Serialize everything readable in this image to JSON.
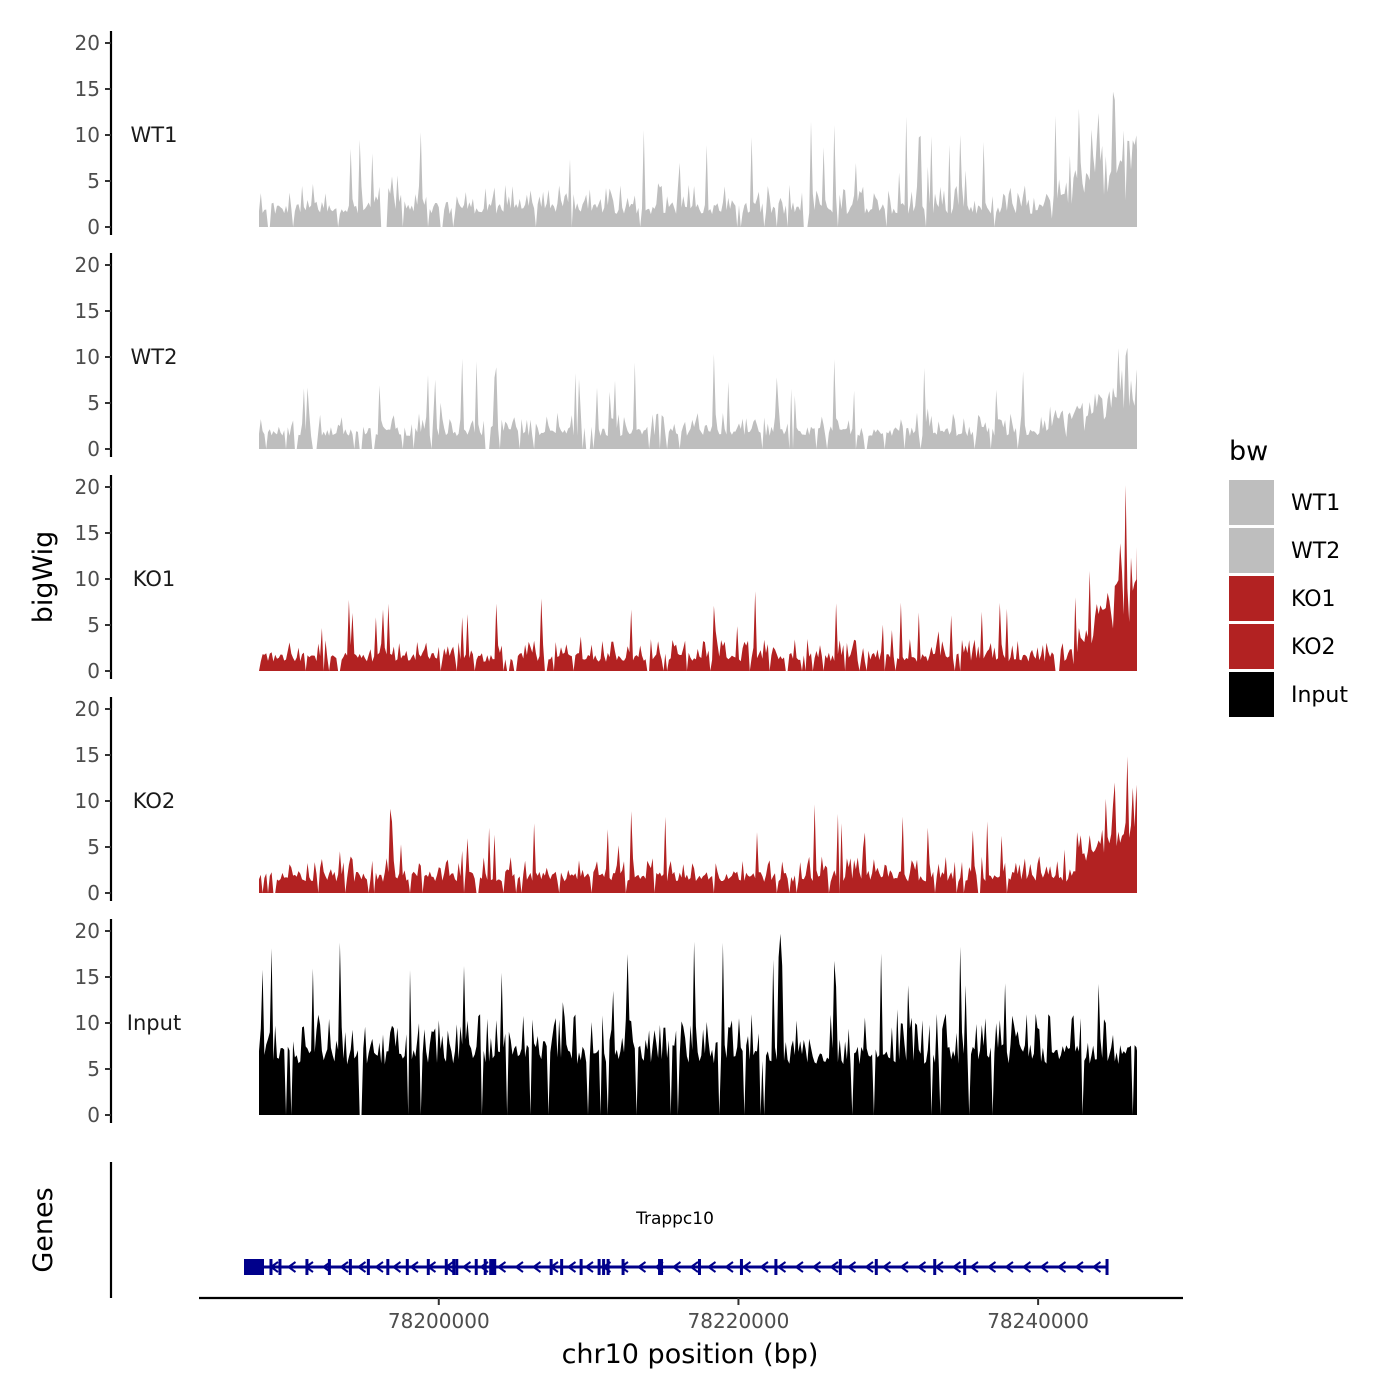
{
  "chart_data": {
    "type": "area",
    "ylabel": "bigWig",
    "xlabel": "chr10 position (bp)",
    "ylim": [
      0,
      20
    ],
    "yticks": [
      0,
      5,
      10,
      15,
      20
    ],
    "xlim": [
      78187000,
      78246600
    ],
    "xticks": [
      78200000,
      78220000,
      78240000
    ],
    "xtick_labels": [
      "78200000",
      "78220000",
      "78240000"
    ],
    "legend": {
      "title": "bw",
      "position": "right",
      "items": [
        {
          "label": "WT1",
          "color": "#bebebe"
        },
        {
          "label": "WT2",
          "color": "#bebebe"
        },
        {
          "label": "KO1",
          "color": "#b22222"
        },
        {
          "label": "KO2",
          "color": "#b22222"
        },
        {
          "label": "Input",
          "color": "#000000"
        }
      ]
    },
    "series": [
      {
        "name": "WT1",
        "color": "#bebebe",
        "start": 78188000,
        "end": 78248000,
        "baseline": 1.4,
        "noise": 3.2,
        "peak_prob": 0.07,
        "peak_height": 6.5,
        "ramp_start": 78240000,
        "ramp_to": 7.0,
        "max_value": 14.7,
        "gaps": [
          [
            78196200,
            78196550
          ],
          [
            78224250,
            78224600
          ]
        ],
        "seed": 11
      },
      {
        "name": "WT2",
        "color": "#bebebe",
        "start": 78188000,
        "end": 78248000,
        "baseline": 1.4,
        "noise": 2.6,
        "peak_prob": 0.06,
        "peak_height": 5.5,
        "ramp_start": 78240000,
        "ramp_to": 5.2,
        "max_value": 11.0,
        "gaps": [
          [
            78190300,
            78190550
          ],
          [
            78191600,
            78191900
          ],
          [
            78203100,
            78203400
          ],
          [
            78209800,
            78210100
          ]
        ],
        "seed": 23
      },
      {
        "name": "KO1",
        "color": "#b22222",
        "start": 78188000,
        "end": 78248000,
        "baseline": 1.0,
        "noise": 2.5,
        "peak_prob": 0.06,
        "peak_height": 4.5,
        "ramp_start": 78242000,
        "ramp_to": 11.0,
        "max_value": 20.2,
        "gaps": [
          [
            78193200,
            78193400
          ],
          [
            78207000,
            78207200
          ],
          [
            78213900,
            78214100
          ],
          [
            78241100,
            78241400
          ]
        ],
        "seed": 37
      },
      {
        "name": "KO2",
        "color": "#b22222",
        "start": 78188000,
        "end": 78248000,
        "baseline": 1.2,
        "noise": 2.8,
        "peak_prob": 0.07,
        "peak_height": 5.0,
        "ramp_start": 78242000,
        "ramp_to": 10.0,
        "max_value": 17.4,
        "gaps": [
          [
            78202500,
            78202700
          ]
        ],
        "seed": 53
      },
      {
        "name": "Input",
        "color": "#000000",
        "start": 78188000,
        "end": 78248000,
        "baseline": 5.5,
        "noise": 5.5,
        "peak_prob": 0.06,
        "peak_height": 9.0,
        "ramp_start": null,
        "ramp_to": 0,
        "max_value": 19.7,
        "gaps": [],
        "seed": 71
      }
    ],
    "genes": {
      "label": "Genes",
      "items": [
        {
          "name": "Trappc10",
          "strand": "-",
          "color": "#00008b",
          "start": 78187000,
          "end": 78244600,
          "exons": [
            78187000,
            78188800,
            78189400,
            78191200,
            78192700,
            78194100,
            78195300,
            78196600,
            78197900,
            78199300,
            78200500,
            78201000,
            78201200,
            78202500,
            78203100,
            78203600,
            78207500,
            78208200,
            78209500,
            78210700,
            78211000,
            78211300,
            78212300,
            78214800,
            78217400,
            78220200,
            78222500,
            78226800,
            78229200,
            78233100,
            78235100,
            78244600
          ]
        }
      ]
    }
  }
}
